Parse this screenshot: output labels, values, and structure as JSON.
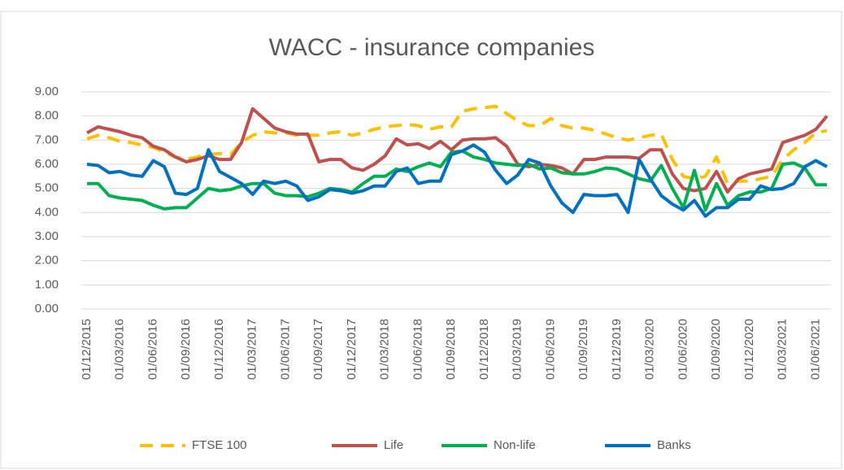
{
  "chart_data": {
    "type": "line",
    "title": "WACC - insurance companies",
    "categories": [
      "01/12/2015",
      null,
      null,
      "01/03/2016",
      null,
      null,
      "01/06/2016",
      null,
      null,
      "01/09/2016",
      null,
      null,
      "01/12/2016",
      null,
      null,
      "01/03/2017",
      null,
      null,
      "01/06/2017",
      null,
      null,
      "01/09/2017",
      null,
      null,
      "01/12/2017",
      null,
      null,
      "01/03/2018",
      null,
      null,
      "01/06/2018",
      null,
      null,
      "01/09/2018",
      null,
      null,
      "01/12/2018",
      null,
      null,
      "01/03/2019",
      null,
      null,
      "01/06/2019",
      null,
      null,
      "01/09/2019",
      null,
      null,
      "01/12/2019",
      null,
      null,
      "01/03/2020",
      null,
      null,
      "01/06/2020",
      null,
      null,
      "01/09/2020",
      null,
      null,
      "01/12/2020",
      null,
      null,
      "01/03/2021",
      null,
      null,
      "01/06/2021",
      null
    ],
    "series": [
      {
        "name": "FTSE 100",
        "color": "#ffc000",
        "dashed": true,
        "values": [
          7.05,
          7.2,
          7.1,
          6.95,
          6.9,
          6.8,
          6.7,
          6.5,
          6.3,
          6.2,
          6.3,
          6.4,
          6.45,
          6.4,
          6.9,
          7.2,
          7.35,
          7.3,
          7.3,
          7.2,
          7.2,
          7.2,
          7.3,
          7.35,
          7.2,
          7.3,
          7.45,
          7.55,
          7.6,
          7.65,
          7.6,
          7.45,
          7.55,
          7.55,
          8.2,
          8.3,
          8.35,
          8.4,
          8.1,
          7.8,
          7.6,
          7.6,
          7.9,
          7.6,
          7.5,
          7.5,
          7.4,
          7.25,
          7.1,
          7.0,
          7.1,
          7.2,
          7.25,
          6.2,
          5.5,
          5.4,
          5.5,
          6.3,
          5.2,
          5.3,
          5.3,
          5.4,
          5.5,
          6.2,
          6.6,
          6.9,
          7.3,
          7.4
        ]
      },
      {
        "name": "Life",
        "color": "#c0504d",
        "values": [
          7.3,
          7.55,
          7.45,
          7.35,
          7.2,
          7.1,
          6.75,
          6.6,
          6.3,
          6.1,
          6.2,
          6.35,
          6.2,
          6.2,
          6.9,
          8.3,
          7.9,
          7.5,
          7.35,
          7.25,
          7.25,
          6.1,
          6.2,
          6.2,
          5.85,
          5.75,
          6.0,
          6.35,
          7.05,
          6.8,
          6.85,
          6.65,
          6.95,
          6.6,
          7.0,
          7.05,
          7.05,
          7.1,
          6.75,
          6.0,
          5.9,
          6.0,
          5.95,
          5.85,
          5.6,
          6.2,
          6.2,
          6.3,
          6.3,
          6.3,
          6.25,
          6.6,
          6.6,
          5.6,
          5.0,
          4.9,
          5.0,
          5.7,
          4.85,
          5.4,
          5.6,
          5.7,
          5.8,
          6.9,
          7.05,
          7.2,
          7.45,
          8.0
        ]
      },
      {
        "name": "Non-life",
        "color": "#00b050",
        "values": [
          5.2,
          5.2,
          4.7,
          4.6,
          4.55,
          4.5,
          4.3,
          4.15,
          4.2,
          4.2,
          4.6,
          5.0,
          4.9,
          4.95,
          5.1,
          5.2,
          5.2,
          4.8,
          4.7,
          4.7,
          4.65,
          4.8,
          5.0,
          4.95,
          4.85,
          5.2,
          5.5,
          5.5,
          5.8,
          5.7,
          5.9,
          6.05,
          5.9,
          6.5,
          6.55,
          6.3,
          6.2,
          6.05,
          6.0,
          5.95,
          6.0,
          5.8,
          5.85,
          5.65,
          5.6,
          5.6,
          5.7,
          5.85,
          5.8,
          5.6,
          5.4,
          5.3,
          5.95,
          5.0,
          4.2,
          5.75,
          4.1,
          5.2,
          4.3,
          4.7,
          4.85,
          4.85,
          5.0,
          6.0,
          6.05,
          5.85,
          5.15,
          5.15
        ]
      },
      {
        "name": "Banks",
        "color": "#0070c0",
        "values": [
          6.0,
          5.95,
          5.65,
          5.7,
          5.55,
          5.5,
          6.15,
          5.9,
          4.8,
          4.75,
          5.0,
          6.6,
          5.7,
          5.45,
          5.2,
          4.75,
          5.3,
          5.2,
          5.3,
          5.1,
          4.5,
          4.65,
          4.95,
          4.9,
          4.8,
          4.9,
          5.1,
          5.1,
          5.7,
          5.85,
          5.2,
          5.3,
          5.3,
          6.4,
          6.55,
          6.8,
          6.5,
          5.75,
          5.2,
          5.55,
          6.2,
          6.05,
          5.1,
          4.4,
          4.0,
          4.75,
          4.7,
          4.7,
          4.75,
          4.0,
          6.2,
          5.4,
          4.7,
          4.35,
          4.1,
          4.5,
          3.85,
          4.2,
          4.2,
          4.55,
          4.55,
          5.1,
          4.95,
          5.0,
          5.2,
          5.9,
          6.15,
          5.9
        ]
      }
    ],
    "ylim": [
      0,
      9
    ],
    "yticks": [
      {
        "value": 0,
        "label": "0.00"
      },
      {
        "value": 1,
        "label": "1.00"
      },
      {
        "value": 2,
        "label": "2.00"
      },
      {
        "value": 3,
        "label": "3.00"
      },
      {
        "value": 4,
        "label": "4.00"
      },
      {
        "value": 5,
        "label": "5.00"
      },
      {
        "value": 6,
        "label": "6.00"
      },
      {
        "value": 7,
        "label": "7.00"
      },
      {
        "value": 8,
        "label": "8.00"
      },
      {
        "value": 9,
        "label": "9.00"
      }
    ],
    "grid": true,
    "legend": "bottom"
  }
}
